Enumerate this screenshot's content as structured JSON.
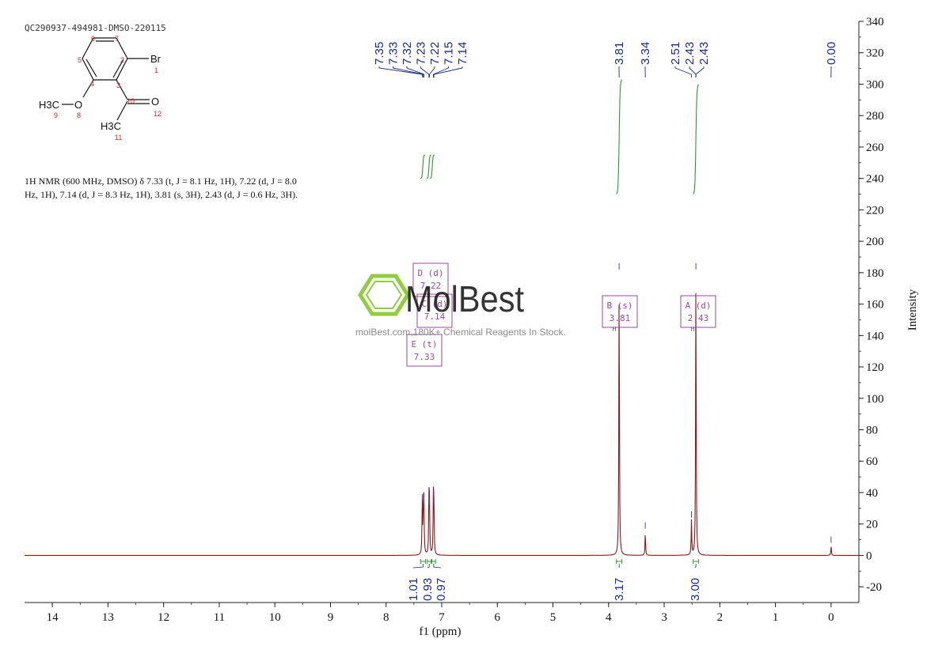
{
  "sample_id": "QC290937-494981-DMSO-220115",
  "nmr_description": "1H NMR (600 MHz, DMSO) δ 7.33 (t, J = 8.1 Hz, 1H), 7.22 (d, J = 8.0 Hz, 1H), 7.14 (d, J = 8.3 Hz, 1H), 3.81 (s, 3H), 2.43 (d, J = 0.6 Hz, 3H).",
  "watermark": {
    "brand": "MolBest",
    "tagline": "molBest.com,180K+ Chemical Reagents In Stock."
  },
  "molecule": {
    "atoms": [
      {
        "label": "Br",
        "number": "1"
      },
      {
        "label": "",
        "number": "2"
      },
      {
        "label": "",
        "number": "3"
      },
      {
        "label": "",
        "number": "4"
      },
      {
        "label": "",
        "number": "5"
      },
      {
        "label": "",
        "number": "6"
      },
      {
        "label": "",
        "number": "7"
      },
      {
        "label": "O",
        "number": "8"
      },
      {
        "label": "H3C",
        "number": "9"
      },
      {
        "label": "",
        "number": "10"
      },
      {
        "label": "H3C",
        "number": "11"
      },
      {
        "label": "O",
        "number": "12"
      }
    ]
  },
  "colors": {
    "spectrum": "#8b1a1a",
    "integral": "#2e9a2e",
    "peak_label": "#1a2a8c",
    "multiplet_box": "#9b4aa0",
    "axis": "#222222",
    "logo_green": "#7dc51e"
  },
  "chart_data": {
    "type": "line",
    "xlabel": "f1 (ppm)",
    "ylabel": "Intensity",
    "xlim": [
      14.5,
      -0.5
    ],
    "ylim": [
      -30,
      340
    ],
    "x_ticks": [
      14,
      13,
      12,
      11,
      10,
      9,
      8,
      7,
      6,
      5,
      4,
      3,
      2,
      1,
      0
    ],
    "y_ticks": [
      -20,
      0,
      20,
      40,
      60,
      80,
      100,
      120,
      140,
      160,
      180,
      200,
      220,
      240,
      260,
      280,
      300,
      320,
      340
    ],
    "peaks": [
      {
        "ppm": 7.35,
        "height": 33
      },
      {
        "ppm": 7.33,
        "height": 28
      },
      {
        "ppm": 7.32,
        "height": 31
      },
      {
        "ppm": 7.23,
        "height": 36
      },
      {
        "ppm": 7.22,
        "height": 30
      },
      {
        "ppm": 7.15,
        "height": 35
      },
      {
        "ppm": 7.14,
        "height": 30
      },
      {
        "ppm": 3.81,
        "height": 180
      },
      {
        "ppm": 3.34,
        "height": 15
      },
      {
        "ppm": 2.51,
        "height": 22
      },
      {
        "ppm": 2.43,
        "height": 180
      },
      {
        "ppm": 0.0,
        "height": 6
      }
    ],
    "peak_labels": [
      "7.35",
      "7.33",
      "7.32",
      "7.23",
      "7.22",
      "7.15",
      "7.14",
      "3.81",
      "3.34",
      "2.51",
      "2.43",
      "2.43",
      "0.00"
    ],
    "integrals": [
      {
        "ppm_from": 7.38,
        "ppm_to": 7.29,
        "value": "1.01"
      },
      {
        "ppm_from": 7.26,
        "ppm_to": 7.19,
        "value": "0.93"
      },
      {
        "ppm_from": 7.18,
        "ppm_to": 7.11,
        "value": "0.97"
      },
      {
        "ppm_from": 3.86,
        "ppm_to": 3.76,
        "value": "3.17"
      },
      {
        "ppm_from": 2.48,
        "ppm_to": 2.38,
        "value": "3.00"
      }
    ],
    "multiplets": [
      {
        "letter": "D",
        "mult": "(d)",
        "shift": "7.22"
      },
      {
        "letter": "C",
        "mult": "(d)",
        "shift": "7.14"
      },
      {
        "letter": "E",
        "mult": "(t)",
        "shift": "7.33"
      },
      {
        "letter": "B",
        "mult": "(s)",
        "shift": "3.81"
      },
      {
        "letter": "A",
        "mult": "(d)",
        "shift": "2.43"
      }
    ]
  }
}
